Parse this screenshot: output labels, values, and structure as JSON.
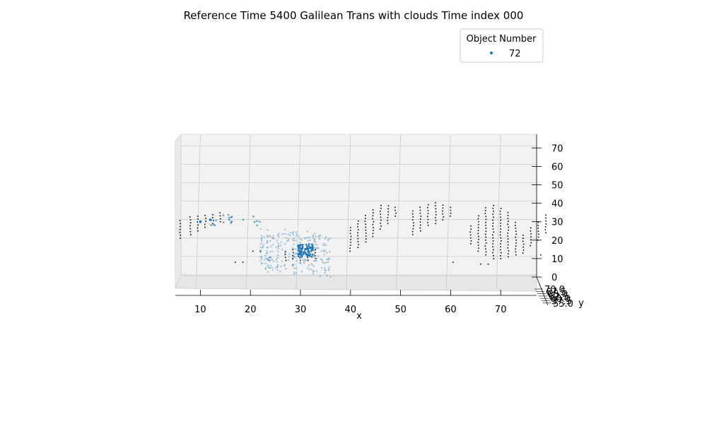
{
  "chart_data": {
    "type": "scatter3d",
    "title": "Reference Time 5400 Galilean Trans with clouds Time index 000",
    "xlabel": "x",
    "ylabel": "y",
    "zlabel": "",
    "x_ticks": [
      "10",
      "20",
      "30",
      "40",
      "50",
      "60",
      "70"
    ],
    "y_ticks": [
      "70.0",
      "67.5",
      "65.0",
      "62.5",
      "60.0",
      "57.5",
      "55.0"
    ],
    "z_ticks": [
      "0",
      "10",
      "20",
      "30",
      "40",
      "50",
      "60",
      "70"
    ],
    "xlim": [
      5,
      80
    ],
    "ylim": [
      55,
      70
    ],
    "zlim": [
      0,
      75
    ],
    "grid": true,
    "legend": {
      "title": "Object Number",
      "position": "top-right",
      "entries": [
        {
          "label": "72",
          "color": "#1f77b4"
        }
      ]
    },
    "series": [
      {
        "name": "72",
        "color": "#1f77b4",
        "description_points": [
          [
            30,
            60,
            14
          ],
          [
            31,
            60,
            15
          ],
          [
            32,
            60,
            16
          ],
          [
            10,
            60,
            30
          ],
          [
            12,
            60,
            31
          ]
        ]
      }
    ],
    "cloud_color": "#000000",
    "cloud_columns": [
      {
        "x": 6,
        "z_min": 21,
        "z_max": 32
      },
      {
        "x": 8,
        "z_min": 23,
        "z_max": 33
      },
      {
        "x": 9.5,
        "z_min": 25,
        "z_max": 34
      },
      {
        "x": 11,
        "z_min": 27,
        "z_max": 35
      },
      {
        "x": 12.5,
        "z_min": 29,
        "z_max": 35
      },
      {
        "x": 14,
        "z_min": 30,
        "z_max": 36
      },
      {
        "x": 27,
        "z_min": 9,
        "z_max": 14
      },
      {
        "x": 28.5,
        "z_min": 10,
        "z_max": 15
      },
      {
        "x": 30,
        "z_min": 9,
        "z_max": 16
      },
      {
        "x": 31.5,
        "z_min": 9,
        "z_max": 16
      },
      {
        "x": 33,
        "z_min": 10,
        "z_max": 15
      },
      {
        "x": 40,
        "z_min": 14,
        "z_max": 27
      },
      {
        "x": 41.5,
        "z_min": 16,
        "z_max": 32
      },
      {
        "x": 43,
        "z_min": 19,
        "z_max": 35
      },
      {
        "x": 44.5,
        "z_min": 22,
        "z_max": 38
      },
      {
        "x": 46,
        "z_min": 26,
        "z_max": 39
      },
      {
        "x": 47.5,
        "z_min": 29,
        "z_max": 40
      },
      {
        "x": 49,
        "z_min": 33,
        "z_max": 39
      },
      {
        "x": 52.5,
        "z_min": 23,
        "z_max": 37
      },
      {
        "x": 54,
        "z_min": 25,
        "z_max": 39
      },
      {
        "x": 55.5,
        "z_min": 28,
        "z_max": 40
      },
      {
        "x": 57,
        "z_min": 29,
        "z_max": 41
      },
      {
        "x": 58.5,
        "z_min": 31,
        "z_max": 40
      },
      {
        "x": 60,
        "z_min": 33,
        "z_max": 39
      },
      {
        "x": 64,
        "z_min": 18,
        "z_max": 28
      },
      {
        "x": 65.5,
        "z_min": 14,
        "z_max": 34
      },
      {
        "x": 67,
        "z_min": 12,
        "z_max": 38
      },
      {
        "x": 68.5,
        "z_min": 10,
        "z_max": 39
      },
      {
        "x": 70,
        "z_min": 10,
        "z_max": 38
      },
      {
        "x": 71.5,
        "z_min": 11,
        "z_max": 36
      },
      {
        "x": 73,
        "z_min": 12,
        "z_max": 30
      },
      {
        "x": 74.5,
        "z_min": 13,
        "z_max": 24
      },
      {
        "x": 76,
        "z_min": 17,
        "z_max": 28
      },
      {
        "x": 77.5,
        "z_min": 20,
        "z_max": 31
      },
      {
        "x": 79,
        "z_min": 24,
        "z_max": 35
      }
    ]
  }
}
